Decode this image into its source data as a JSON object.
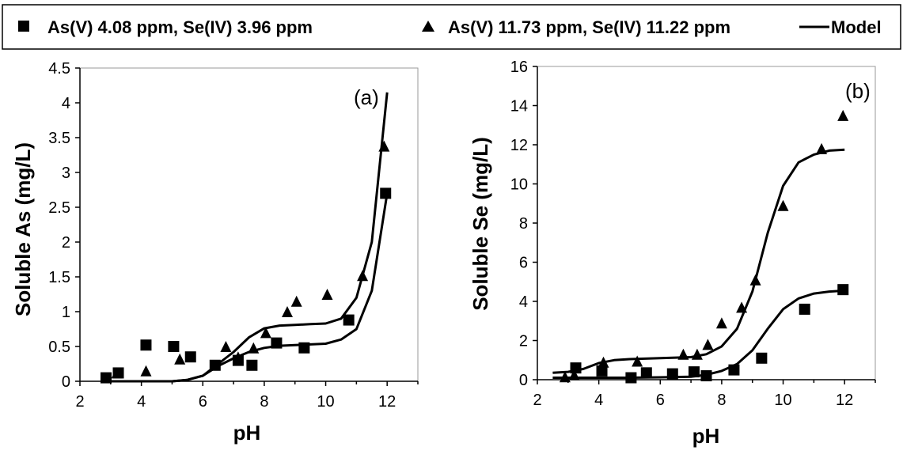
{
  "legend": {
    "items": [
      {
        "marker": "square",
        "label": "As(V) 4.08 ppm, Se(IV) 3.96 ppm"
      },
      {
        "marker": "triangle",
        "label": "As(V) 11.73 ppm, Se(IV) 11.22 ppm"
      },
      {
        "marker": "line",
        "label": "Model"
      }
    ]
  },
  "chart_data": [
    {
      "type": "scatter",
      "panel_label": "(a)",
      "xlabel": "pH",
      "ylabel": "Soluble As (mg/L)",
      "xlim": [
        2,
        13
      ],
      "ylim": [
        0,
        4.5
      ],
      "x_ticks": [
        "2",
        "4",
        "6",
        "8",
        "10",
        "12"
      ],
      "y_ticks": [
        "0",
        "0.5",
        "1",
        "1.5",
        "2",
        "2.5",
        "3",
        "3.5",
        "4",
        "4.5"
      ],
      "series": [
        {
          "marker": "square",
          "points": [
            [
              2.85,
              0.05
            ],
            [
              3.25,
              0.12
            ],
            [
              4.15,
              0.52
            ],
            [
              5.05,
              0.5
            ],
            [
              5.6,
              0.35
            ],
            [
              6.4,
              0.23
            ],
            [
              7.15,
              0.3
            ],
            [
              7.6,
              0.23
            ],
            [
              8.4,
              0.55
            ],
            [
              9.3,
              0.48
            ],
            [
              10.75,
              0.88
            ],
            [
              11.95,
              2.7
            ]
          ]
        },
        {
          "marker": "triangle",
          "points": [
            [
              3.2,
              0.12
            ],
            [
              4.15,
              0.15
            ],
            [
              5.25,
              0.32
            ],
            [
              6.75,
              0.5
            ],
            [
              7.15,
              0.35
            ],
            [
              7.65,
              0.48
            ],
            [
              8.05,
              0.7
            ],
            [
              8.75,
              1.0
            ],
            [
              9.05,
              1.15
            ],
            [
              10.05,
              1.25
            ],
            [
              11.2,
              1.52
            ],
            [
              11.9,
              3.38
            ]
          ]
        },
        {
          "marker": "line",
          "points": [
            [
              2.8,
              0.0
            ],
            [
              5.0,
              0.0
            ],
            [
              5.5,
              0.02
            ],
            [
              6.0,
              0.08
            ],
            [
              6.5,
              0.22
            ],
            [
              7.0,
              0.33
            ],
            [
              7.5,
              0.42
            ],
            [
              8.0,
              0.48
            ],
            [
              8.5,
              0.51
            ],
            [
              9.0,
              0.52
            ],
            [
              9.5,
              0.53
            ],
            [
              10.0,
              0.54
            ],
            [
              10.5,
              0.6
            ],
            [
              11.0,
              0.75
            ],
            [
              11.5,
              1.3
            ],
            [
              12.0,
              2.7
            ]
          ]
        },
        {
          "marker": "line",
          "points": [
            [
              2.8,
              0.0
            ],
            [
              5.0,
              0.0
            ],
            [
              5.5,
              0.02
            ],
            [
              6.0,
              0.08
            ],
            [
              6.5,
              0.25
            ],
            [
              7.0,
              0.42
            ],
            [
              7.5,
              0.63
            ],
            [
              8.0,
              0.76
            ],
            [
              8.5,
              0.8
            ],
            [
              9.0,
              0.81
            ],
            [
              9.5,
              0.82
            ],
            [
              10.0,
              0.83
            ],
            [
              10.5,
              0.9
            ],
            [
              11.0,
              1.2
            ],
            [
              11.5,
              2.0
            ],
            [
              12.0,
              4.15
            ]
          ]
        }
      ]
    },
    {
      "type": "scatter",
      "panel_label": "(b)",
      "xlabel": "pH",
      "ylabel": "Soluble Se (mg/L)",
      "xlim": [
        2,
        13
      ],
      "ylim": [
        0,
        16
      ],
      "x_ticks": [
        "2",
        "4",
        "6",
        "8",
        "10",
        "12"
      ],
      "y_ticks": [
        "0",
        "2",
        "4",
        "6",
        "8",
        "10",
        "12",
        "14",
        "16"
      ],
      "series": [
        {
          "marker": "square",
          "points": [
            [
              3.25,
              0.6
            ],
            [
              4.1,
              0.45
            ],
            [
              5.05,
              0.1
            ],
            [
              5.55,
              0.35
            ],
            [
              6.4,
              0.3
            ],
            [
              7.1,
              0.4
            ],
            [
              7.5,
              0.2
            ],
            [
              8.4,
              0.5
            ],
            [
              9.3,
              1.1
            ],
            [
              10.7,
              3.6
            ],
            [
              11.95,
              4.6
            ]
          ]
        },
        {
          "marker": "triangle",
          "points": [
            [
              2.9,
              0.15
            ],
            [
              3.2,
              0.25
            ],
            [
              4.15,
              0.9
            ],
            [
              5.25,
              0.95
            ],
            [
              6.75,
              1.3
            ],
            [
              7.2,
              1.3
            ],
            [
              7.55,
              1.8
            ],
            [
              8.0,
              2.9
            ],
            [
              8.65,
              3.7
            ],
            [
              9.1,
              5.1
            ],
            [
              10.0,
              8.9
            ],
            [
              11.25,
              11.8
            ],
            [
              11.95,
              13.5
            ]
          ]
        },
        {
          "marker": "line",
          "points": [
            [
              2.5,
              0.1
            ],
            [
              5.0,
              0.1
            ],
            [
              6.0,
              0.12
            ],
            [
              7.0,
              0.15
            ],
            [
              7.5,
              0.25
            ],
            [
              8.0,
              0.45
            ],
            [
              8.5,
              0.8
            ],
            [
              9.0,
              1.5
            ],
            [
              9.5,
              2.6
            ],
            [
              10.0,
              3.6
            ],
            [
              10.5,
              4.15
            ],
            [
              11.0,
              4.4
            ],
            [
              11.5,
              4.5
            ],
            [
              12.0,
              4.55
            ]
          ]
        },
        {
          "marker": "line",
          "points": [
            [
              2.5,
              0.35
            ],
            [
              3.0,
              0.4
            ],
            [
              3.5,
              0.55
            ],
            [
              4.0,
              0.85
            ],
            [
              4.5,
              1.0
            ],
            [
              5.0,
              1.05
            ],
            [
              6.0,
              1.1
            ],
            [
              7.0,
              1.15
            ],
            [
              7.5,
              1.3
            ],
            [
              8.0,
              1.7
            ],
            [
              8.5,
              2.6
            ],
            [
              9.0,
              4.5
            ],
            [
              9.5,
              7.5
            ],
            [
              10.0,
              9.9
            ],
            [
              10.5,
              11.1
            ],
            [
              11.0,
              11.5
            ],
            [
              11.5,
              11.7
            ],
            [
              12.0,
              11.75
            ]
          ]
        }
      ]
    }
  ]
}
